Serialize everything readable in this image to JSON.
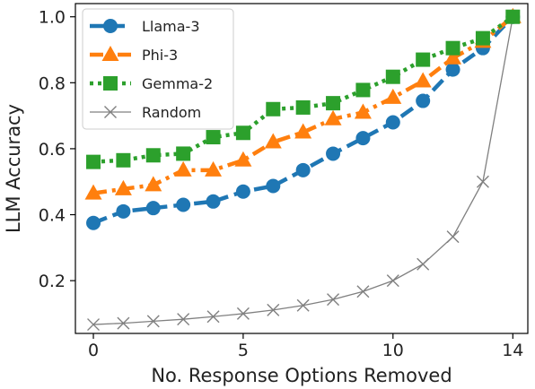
{
  "chart_data": {
    "type": "line",
    "xlabel": "No. Response Options Removed",
    "ylabel": "LLM Accuracy",
    "xlim": [
      -0.6,
      14.5
    ],
    "ylim": [
      0.04,
      1.04
    ],
    "x_ticks": [
      0,
      5,
      10,
      14
    ],
    "y_ticks": [
      0.2,
      0.4,
      0.6,
      0.8,
      1.0
    ],
    "x_tick_labels": [
      "0",
      "5",
      "10",
      "14"
    ],
    "y_tick_labels": [
      "0.2",
      "0.4",
      "0.6",
      "0.8",
      "1.0"
    ],
    "grid": false,
    "legend_position": "top-left",
    "x": [
      0,
      1,
      2,
      3,
      4,
      5,
      6,
      7,
      8,
      9,
      10,
      11,
      12,
      13,
      14
    ],
    "series": [
      {
        "name": "Llama-3",
        "color": "#1f77b4",
        "marker": "circle",
        "line_style": "dashed",
        "values": [
          0.375,
          0.41,
          0.42,
          0.43,
          0.44,
          0.47,
          0.487,
          0.535,
          0.585,
          0.632,
          0.68,
          0.745,
          0.84,
          0.905,
          1.0
        ]
      },
      {
        "name": "Phi-3",
        "color": "#ff7f0e",
        "marker": "triangle",
        "line_style": "dashdot",
        "values": [
          0.465,
          0.478,
          0.49,
          0.535,
          0.535,
          0.565,
          0.62,
          0.65,
          0.69,
          0.71,
          0.755,
          0.805,
          0.875,
          0.925,
          1.0
        ]
      },
      {
        "name": "Gemma-2",
        "color": "#2ca02c",
        "marker": "square",
        "line_style": "dotted",
        "values": [
          0.56,
          0.565,
          0.58,
          0.585,
          0.635,
          0.648,
          0.72,
          0.725,
          0.738,
          0.778,
          0.818,
          0.87,
          0.905,
          0.935,
          1.0
        ]
      },
      {
        "name": "Random",
        "color": "#808080",
        "marker": "x",
        "line_style": "solid",
        "values": [
          0.067,
          0.071,
          0.077,
          0.083,
          0.091,
          0.1,
          0.111,
          0.125,
          0.143,
          0.167,
          0.2,
          0.25,
          0.333,
          0.5,
          1.0
        ]
      }
    ]
  }
}
